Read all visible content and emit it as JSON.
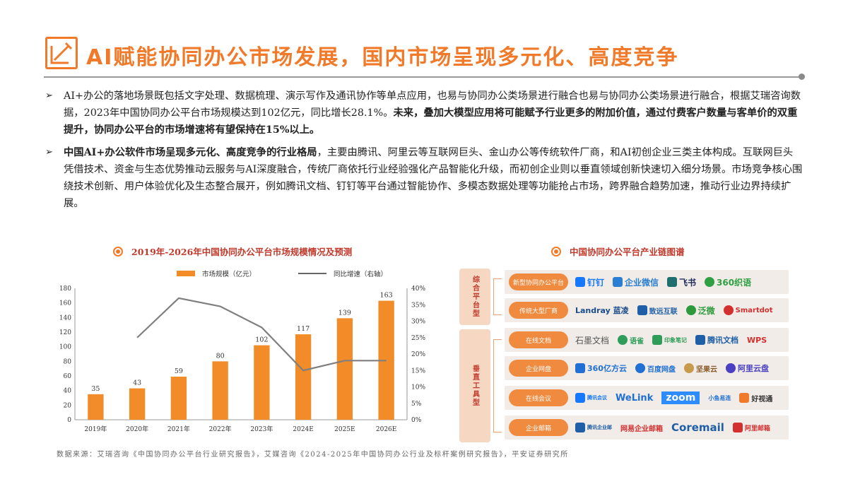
{
  "header": {
    "title": "AI赋能协同办公市场发展，国内市场呈现多元化、高度竞争"
  },
  "bullets": [
    {
      "mark": "➢",
      "text_plain": "AI+办公的落地场景既包括文字处理、数据梳理、演示写作及通讯协作等单点应用，也易与协同办公类场景进行融合也易与协同办公类场景进行融合，根据艾瑞咨询数据，2023年中国协同办公平台市场规模达到102亿元，同比增长28.1%。",
      "text_bold": "未来，叠加大模型应用将可能赋予行业更多的附加价值，通过付费客户数量与客单价的双重提升，协同办公平台的市场增速将有望保持在15%以上。"
    },
    {
      "mark": "➢",
      "text_bold": "中国AI+办公软件市场呈现多元化、高度竞争的行业格局",
      "text_plain": "，主要由腾讯、阿里云等互联网巨头、金山办公等传统软件厂商，和AI初创企业三类主体构成。互联网巨头凭借技术、资金与生态优势推动云服务与AI深度融合，传统厂商依托行业经验强化产品智能化升级，而初创企业则以垂直领域创新快速切入细分场景。市场竞争核心围绕技术创新、用户体验优化及生态整合展开，例如腾讯文档、钉钉等平台通过智能协作、多模态数据处理等功能抢占市场，跨界融合趋势加速，推动行业边界持续扩展。"
    }
  ],
  "left_section": {
    "heading": "2019年-2026年中国协同办公平台市场规模情况及预测",
    "legend_bar": "市场规模（亿元）",
    "legend_line": "同比增速（右轴）"
  },
  "right_section": {
    "heading": "中国协同办公平台产业链图谱",
    "groups": [
      {
        "label": "综合平台型"
      },
      {
        "label": "垂直工具型"
      }
    ],
    "rows": [
      {
        "category": "新型协同办公平台",
        "logos": [
          {
            "text": "钉钉",
            "color": "#1677ff"
          },
          {
            "text": "企业微信",
            "color": "#2a7fd4"
          },
          {
            "text": "飞书",
            "color": "#1f2b5b"
          },
          {
            "text": "360织语",
            "color": "#2ea043"
          }
        ]
      },
      {
        "category": "传统大型厂商",
        "logos": [
          {
            "text": "Landray 蓝凌",
            "color": "#1a4d8f"
          },
          {
            "text": "致远互联",
            "color": "#1f5fa8"
          },
          {
            "text": "泛微",
            "color": "#2c9a3c"
          },
          {
            "text": "Smartdot",
            "color": "#d32f2f"
          }
        ]
      },
      {
        "category": "在线文档",
        "logos": [
          {
            "text": "石墨文档",
            "color": "#555555"
          },
          {
            "text": "语雀",
            "color": "#2e9d5a"
          },
          {
            "text": "印象笔记",
            "color": "#2e9d5a"
          },
          {
            "text": "腾讯文档",
            "color": "#1f5fa8"
          },
          {
            "text": "WPS",
            "color": "#d32f2f"
          }
        ]
      },
      {
        "category": "企业网盘",
        "logos": [
          {
            "text": "360亿方云",
            "color": "#1f6fd4"
          },
          {
            "text": "百度网盘",
            "color": "#1f6fd4"
          },
          {
            "text": "坚果云",
            "color": "#8a5a2b"
          },
          {
            "text": "阿里云盘",
            "color": "#4b3fc4"
          }
        ]
      },
      {
        "category": "在线会议",
        "logos": [
          {
            "text": "腾讯会议",
            "color": "#1677ff"
          },
          {
            "text": "WeLink",
            "color": "#1f6fd4"
          },
          {
            "text": "zoom",
            "color": "#2d8cff"
          },
          {
            "text": "小鱼易连",
            "color": "#1f6fd4"
          },
          {
            "text": "好视通",
            "color": "#f07a2a"
          }
        ]
      },
      {
        "category": "企业邮箱",
        "logos": [
          {
            "text": "腾讯企业邮",
            "color": "#1f5fa8"
          },
          {
            "text": "网易企业邮箱",
            "color": "#d32f2f"
          },
          {
            "text": "Coremail",
            "color": "#1f5fa8"
          },
          {
            "text": "阿里邮箱",
            "color": "#d32f2f"
          }
        ]
      }
    ]
  },
  "source": "数据来源：艾瑞咨询《中国协同办公平台行业研究报告》，艾媒咨询《2024-2025年中国协同办公行业及标杆案例研究报告》，平安证券研究所",
  "colors": {
    "accent": "#f07a2a",
    "bar": "#f28c28",
    "line": "#7f7f7f",
    "heading": "#c0392b"
  },
  "chart_data": {
    "type": "bar",
    "categories": [
      "2019年",
      "2020年",
      "2021年",
      "2022年",
      "2023年",
      "2024E",
      "2025E",
      "2026E"
    ],
    "series": [
      {
        "name": "市场规模（亿元）",
        "type": "bar",
        "axis": "left",
        "values": [
          35,
          43,
          59,
          80,
          102,
          117,
          139,
          163
        ]
      },
      {
        "name": "同比增速（右轴）",
        "type": "line",
        "axis": "right",
        "values": [
          null,
          25.0,
          37.0,
          34.5,
          28.1,
          15.0,
          18.0,
          18.0
        ]
      }
    ],
    "ylim": [
      0,
      180
    ],
    "yticks": [
      0,
      20,
      40,
      60,
      80,
      100,
      120,
      140,
      160,
      180
    ],
    "y2lim": [
      0,
      40
    ],
    "y2ticks": [
      "0%",
      "5%",
      "10%",
      "15%",
      "20%",
      "25%",
      "30%",
      "35%",
      "40%"
    ],
    "data_labels": true,
    "grid": false,
    "legend": "top"
  }
}
